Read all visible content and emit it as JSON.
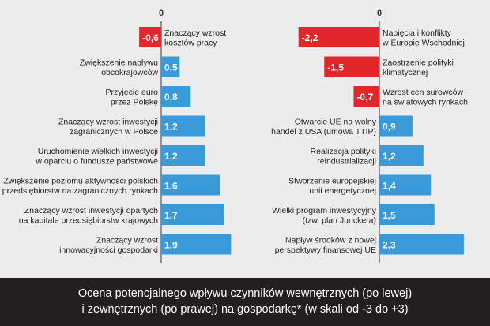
{
  "chart_data": [
    {
      "type": "bar",
      "orientation": "horizontal",
      "zero_label": "0",
      "categories": [
        [
          "Znaczący wzrost",
          "kosztów pracy"
        ],
        [
          "Zwiększenie napływu",
          "obcokrajowców"
        ],
        [
          "Przyjęcie euro",
          "przez Polskę"
        ],
        [
          "Znaczący wzrost inwestycji",
          "zagranicznych w Polsce"
        ],
        [
          "Uruchomienie wielkich inwestycji",
          "w oparciu o fundusze państwowe"
        ],
        [
          "Zwiększenie poziomu aktywności polskich",
          "przedsiębiorstw na zagranicznych rynkach"
        ],
        [
          "Znaczący wzrost inwestycji opartych",
          "na kapitale przedsiębiorstw krajowych"
        ],
        [
          "Znaczący wzrost",
          "innowacyjności gospodarki"
        ]
      ],
      "values": [
        -0.6,
        0.5,
        0.8,
        1.2,
        1.2,
        1.6,
        1.7,
        1.9
      ],
      "value_labels": [
        "-0,6",
        "0,5",
        "0,8",
        "1,2",
        "1,2",
        "1,6",
        "1,7",
        "1,9"
      ]
    },
    {
      "type": "bar",
      "orientation": "horizontal",
      "zero_label": "0",
      "categories": [
        [
          "Napięcia i konflikty",
          "w Europie Wschodniej"
        ],
        [
          "Zaostrzenie polityki",
          "klimatycznej"
        ],
        [
          "Wzrost cen surowców",
          "na światowych rynkach"
        ],
        [
          "Otwarcie UE na wolny",
          "handel z USA (umowa TTIP)"
        ],
        [
          "Realizacja polityki",
          "reindustrializacji"
        ],
        [
          "Stworzenie europejskiej",
          "unii energetycznej"
        ],
        [
          "Wielki program inwestycyjny",
          "(tzw. plan Junckera)"
        ],
        [
          "Napływ środków z nowej",
          "perspektywy finansowej UE"
        ]
      ],
      "values": [
        -2.2,
        -1.5,
        -0.7,
        0.9,
        1.2,
        1.4,
        1.5,
        2.3
      ],
      "value_labels": [
        "-2,2",
        "-1,5",
        "-0,7",
        "0,9",
        "1,2",
        "1,4",
        "1,5",
        "2,3"
      ]
    }
  ],
  "colors": {
    "positive": "#3a9ad9",
    "negative": "#e2262a",
    "background": "#ececec",
    "caption_bg": "#231f20"
  },
  "caption": {
    "line1": "Ocena potencjalnego wpływu czynników wewnętrznych (po lewej)",
    "line2": "i zewnętrznych (po prawej) na gospodarkę* (w skali od -3 do +3)"
  }
}
